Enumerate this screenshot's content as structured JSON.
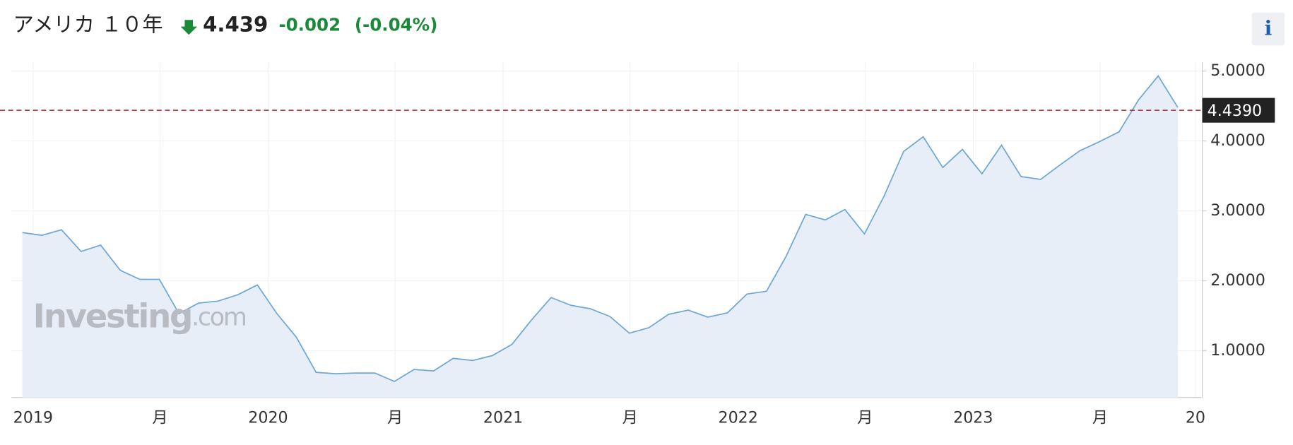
{
  "chart_data": {
    "type": "area",
    "title": "アメリカ １０年",
    "price": "4.439",
    "change": "-0.002",
    "change_pct": "(-0.04%)",
    "info": "i",
    "watermark": "Investing",
    "watermark_suffix": ".com",
    "series": [
      {
        "color": "#6fa8d6",
        "fill": "#e7eef7",
        "values": [
          2.69,
          2.65,
          2.73,
          2.42,
          2.51,
          2.15,
          2.02,
          2.02,
          1.53,
          1.68,
          1.71,
          1.8,
          1.94,
          1.53,
          1.19,
          0.69,
          0.67,
          0.68,
          0.68,
          0.56,
          0.73,
          0.71,
          0.89,
          0.86,
          0.93,
          1.09,
          1.44,
          1.76,
          1.65,
          1.6,
          1.49,
          1.25,
          1.33,
          1.52,
          1.58,
          1.48,
          1.54,
          1.81,
          1.85,
          2.35,
          2.95,
          2.87,
          3.02,
          2.67,
          3.21,
          3.85,
          4.06,
          3.62,
          3.88,
          3.53,
          3.94,
          3.49,
          3.45,
          3.66,
          3.86,
          3.99,
          4.13,
          4.59,
          4.93,
          4.48
        ]
      }
    ],
    "reference_line": {
      "value": 4.439,
      "label": "4.4390",
      "color": "#b22222"
    },
    "xlim": [
      -0.55,
      60.25
    ],
    "xticks": [
      {
        "value": 0.55,
        "label": "2019"
      },
      {
        "value": 7.03,
        "label": "月"
      },
      {
        "value": 12.55,
        "label": "2020"
      },
      {
        "value": 19.03,
        "label": "月"
      },
      {
        "value": 24.55,
        "label": "2021"
      },
      {
        "value": 31.03,
        "label": "月"
      },
      {
        "value": 36.55,
        "label": "2022"
      },
      {
        "value": 43.03,
        "label": "月"
      },
      {
        "value": 48.55,
        "label": "2023"
      },
      {
        "value": 55.03,
        "label": "月"
      },
      {
        "value": 59.9,
        "label": "20"
      }
    ],
    "ylim": [
      0.33,
      5.13
    ],
    "yticks": [
      {
        "value": 1,
        "label": "1.0000"
      },
      {
        "value": 2,
        "label": "2.0000"
      },
      {
        "value": 3,
        "label": "3.0000"
      },
      {
        "value": 4,
        "label": "4.0000"
      },
      {
        "value": 5,
        "label": "5.0000"
      }
    ],
    "grid": true
  }
}
